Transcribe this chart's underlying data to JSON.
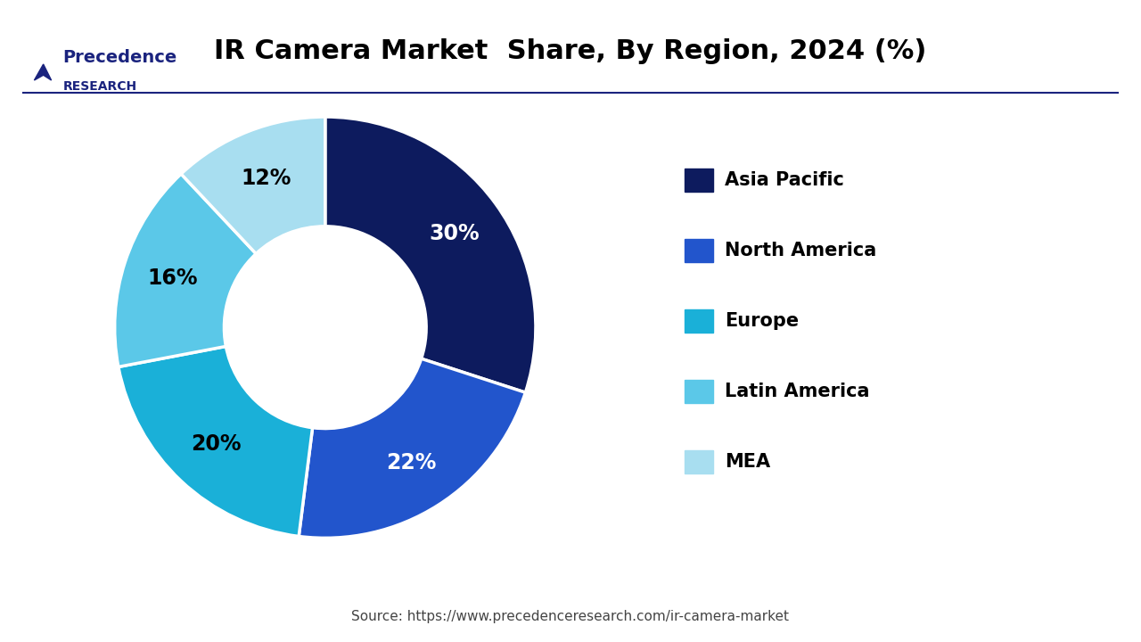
{
  "title": "IR Camera Market  Share, By Region, 2024 (%)",
  "title_fontsize": 22,
  "title_fontweight": "bold",
  "slices": [
    30,
    22,
    20,
    16,
    12
  ],
  "labels": [
    "Asia Pacific",
    "North America",
    "Europe",
    "Latin America",
    "MEA"
  ],
  "colors": [
    "#0d1b5e",
    "#2255cc",
    "#1ab0d8",
    "#5bc8e8",
    "#a8def0"
  ],
  "pct_labels": [
    "30%",
    "22%",
    "20%",
    "16%",
    "12%"
  ],
  "pct_colors": [
    "white",
    "white",
    "black",
    "black",
    "black"
  ],
  "startangle": 90,
  "source_text": "Source: https://www.precedenceresearch.com/ir-camera-market",
  "bg_color": "#ffffff",
  "legend_fontsize": 15,
  "logo_text_line1": "Precedence",
  "logo_text_line2": "RESEARCH"
}
